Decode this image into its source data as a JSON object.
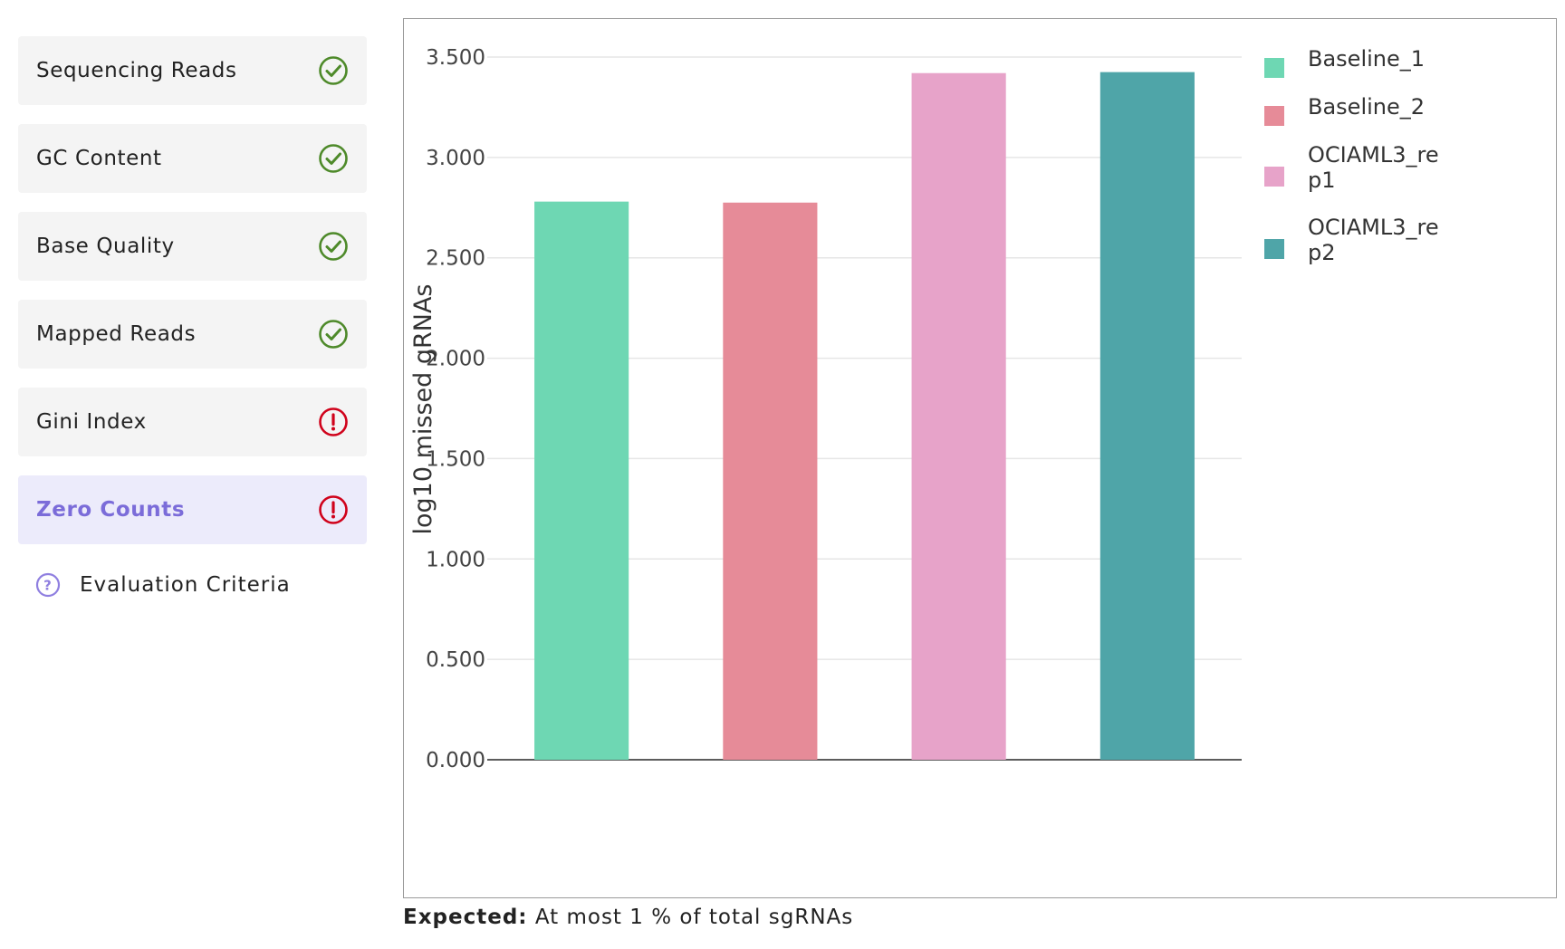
{
  "sidebar": {
    "items": [
      {
        "label": "Sequencing Reads",
        "status": "pass",
        "active": false
      },
      {
        "label": "GC Content",
        "status": "pass",
        "active": false
      },
      {
        "label": "Base Quality",
        "status": "pass",
        "active": false
      },
      {
        "label": "Mapped Reads",
        "status": "pass",
        "active": false
      },
      {
        "label": "Gini Index",
        "status": "fail",
        "active": false
      },
      {
        "label": "Zero Counts",
        "status": "fail",
        "active": true
      }
    ],
    "criteria_label": "Evaluation Criteria"
  },
  "colors": {
    "pass": "#4e8a2a",
    "fail": "#d0021b",
    "active_text": "#7b6cd9",
    "help_icon": "#8f7fe0"
  },
  "chart_data": {
    "type": "bar",
    "categories": [
      "Baseline_1",
      "Baseline_2",
      "OCIAML3_rep1",
      "OCIAML3_rep2"
    ],
    "values": [
      2.78,
      2.775,
      3.42,
      3.425
    ],
    "colors": [
      "#6ed7b3",
      "#e68b98",
      "#e7a3c9",
      "#4fa5a8"
    ],
    "ylabel": "log10 missed gRNAs",
    "xlabel": "",
    "ylim": [
      0,
      3.5
    ],
    "yticks": [
      "0.000",
      "0.500",
      "1.000",
      "1.500",
      "2.000",
      "2.500",
      "3.000",
      "3.500"
    ],
    "legend": [
      {
        "label_lines": [
          "Baseline_1"
        ]
      },
      {
        "label_lines": [
          "Baseline_2"
        ]
      },
      {
        "label_lines": [
          "OCIAML3_re",
          "p1"
        ]
      },
      {
        "label_lines": [
          "OCIAML3_re",
          "p2"
        ]
      }
    ],
    "legend_position": "right",
    "grid": true
  },
  "expected": {
    "label": "Expected:",
    "text": "At most 1 % of total sgRNAs"
  }
}
